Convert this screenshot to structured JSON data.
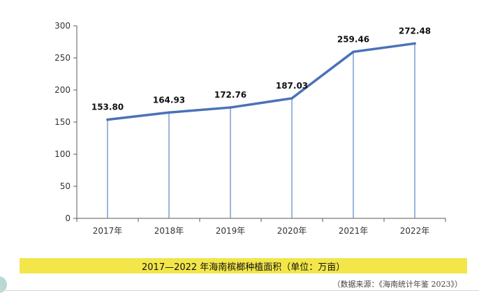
{
  "chart_data": {
    "type": "line",
    "categories": [
      "2017年",
      "2018年",
      "2019年",
      "2020年",
      "2021年",
      "2022年"
    ],
    "series": [
      {
        "values": [
          153.8,
          164.93,
          172.76,
          187.03,
          259.46,
          272.48
        ]
      }
    ],
    "data_labels": [
      "153.80",
      "164.93",
      "172.76",
      "187.03",
      "259.46",
      "272.48"
    ],
    "y_ticks": [
      "0",
      "50",
      "100",
      "150",
      "200",
      "250",
      "300"
    ],
    "ylim": [
      0,
      300
    ],
    "drop_lines": true,
    "grid": false,
    "line_color": "#4a72b8",
    "drop_line_color": "#5b86c5",
    "axis_color": "#595959"
  },
  "caption": "2017—2022 年海南槟榔种植面积（单位：万亩）",
  "source": "（数据来源：《海南统计年鉴 2023》）",
  "caption_bar_color": "#f2e64a"
}
